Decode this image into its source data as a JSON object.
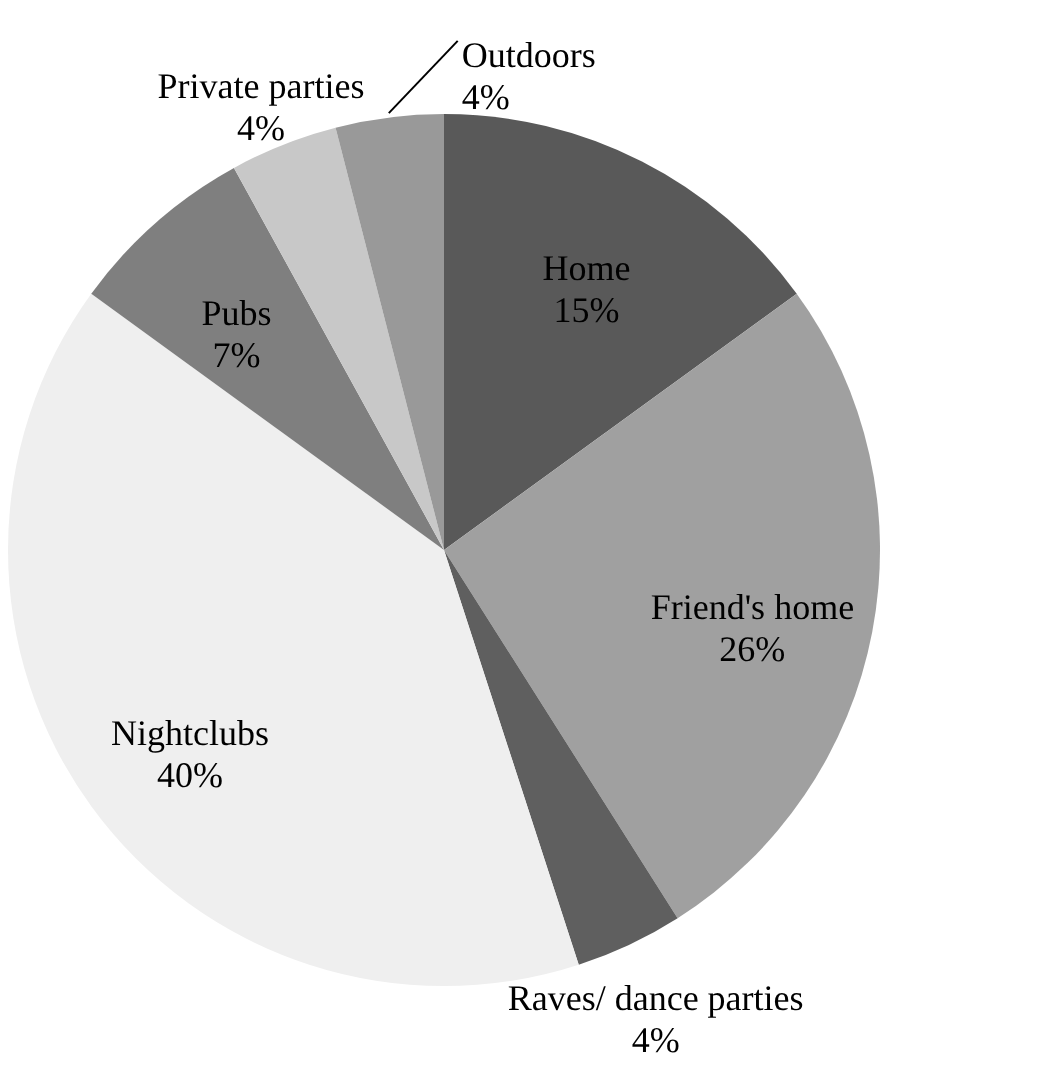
{
  "chart_data": {
    "type": "pie",
    "categories": [
      "Home",
      "Friend's home",
      "Raves/ dance parties",
      "Nightclubs",
      "Pubs",
      "Private parties",
      "Outdoors"
    ],
    "values": [
      15,
      26,
      4,
      40,
      7,
      4,
      4
    ],
    "value_labels": [
      "15%",
      "26%",
      "4%",
      "40%",
      "7%",
      "4%",
      "4%"
    ],
    "colors": [
      "#595959",
      "#a0a0a0",
      "#5f5f5f",
      "#efefef",
      "#7f7f7f",
      "#c8c8c8",
      "#999999"
    ]
  }
}
